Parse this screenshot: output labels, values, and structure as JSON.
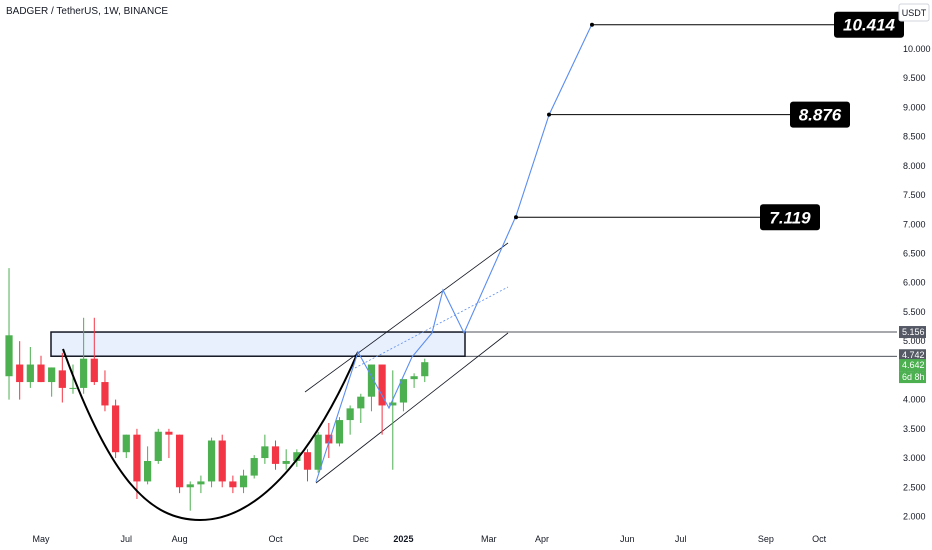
{
  "header": {
    "title": "BADGER / TetherUS, 1W, BINANCE",
    "currency": "USDT"
  },
  "chart_data": {
    "type": "candlestick",
    "y_axis": {
      "range": [
        1.9,
        10.6
      ],
      "ticks": [
        "2.000",
        "2.500",
        "3.000",
        "3.500",
        "4.000",
        "4.500",
        "5.000",
        "5.500",
        "6.000",
        "6.500",
        "7.000",
        "7.500",
        "8.000",
        "8.500",
        "9.000",
        "9.500",
        "10.000"
      ]
    },
    "x_axis": {
      "labels": [
        {
          "text": "May",
          "week": 0
        },
        {
          "text": "Jul",
          "week": 8
        },
        {
          "text": "Aug",
          "week": 13
        },
        {
          "text": "Oct",
          "week": 22
        },
        {
          "text": "Dec",
          "week": 30
        },
        {
          "text": "2025",
          "week": 34,
          "bold": true
        },
        {
          "text": "Mar",
          "week": 42
        },
        {
          "text": "Apr",
          "week": 47
        },
        {
          "text": "Jun",
          "week": 55
        },
        {
          "text": "Jul",
          "week": 60
        },
        {
          "text": "Sep",
          "week": 68
        },
        {
          "text": "Oct",
          "week": 73
        }
      ]
    },
    "candles": [
      {
        "week": -3,
        "o": 4.4,
        "h": 6.25,
        "l": 4.0,
        "c": 5.1
      },
      {
        "week": -2,
        "o": 4.6,
        "h": 5.0,
        "l": 4.0,
        "c": 4.3
      },
      {
        "week": -1,
        "o": 4.3,
        "h": 4.9,
        "l": 4.2,
        "c": 4.6
      },
      {
        "week": 0,
        "o": 4.6,
        "h": 4.75,
        "l": 4.3,
        "c": 4.3
      },
      {
        "week": 1,
        "o": 4.3,
        "h": 4.55,
        "l": 4.05,
        "c": 4.55
      },
      {
        "week": 2,
        "o": 4.5,
        "h": 4.8,
        "l": 3.95,
        "c": 4.2
      },
      {
        "week": 3,
        "o": 4.2,
        "h": 4.6,
        "l": 4.1,
        "c": 4.2
      },
      {
        "week": 4,
        "o": 4.2,
        "h": 5.4,
        "l": 4.1,
        "c": 4.7
      },
      {
        "week": 5,
        "o": 4.7,
        "h": 5.4,
        "l": 4.25,
        "c": 4.3
      },
      {
        "week": 6,
        "o": 4.3,
        "h": 4.5,
        "l": 3.8,
        "c": 3.9
      },
      {
        "week": 7,
        "o": 3.9,
        "h": 4.0,
        "l": 3.0,
        "c": 3.1
      },
      {
        "week": 8,
        "o": 3.1,
        "h": 3.4,
        "l": 3.0,
        "c": 3.4
      },
      {
        "week": 9,
        "o": 3.4,
        "h": 3.5,
        "l": 2.3,
        "c": 2.6
      },
      {
        "week": 10,
        "o": 2.6,
        "h": 3.2,
        "l": 2.55,
        "c": 2.95
      },
      {
        "week": 11,
        "o": 2.95,
        "h": 3.5,
        "l": 2.9,
        "c": 3.45
      },
      {
        "week": 12,
        "o": 3.45,
        "h": 3.5,
        "l": 3.0,
        "c": 3.4
      },
      {
        "week": 13,
        "o": 3.4,
        "h": 3.4,
        "l": 2.4,
        "c": 2.5
      },
      {
        "week": 14,
        "o": 2.5,
        "h": 2.6,
        "l": 2.1,
        "c": 2.55
      },
      {
        "week": 15,
        "o": 2.55,
        "h": 2.7,
        "l": 2.4,
        "c": 2.6
      },
      {
        "week": 16,
        "o": 2.6,
        "h": 3.35,
        "l": 2.5,
        "c": 3.3
      },
      {
        "week": 17,
        "o": 3.3,
        "h": 3.4,
        "l": 2.5,
        "c": 2.6
      },
      {
        "week": 18,
        "o": 2.6,
        "h": 2.7,
        "l": 2.4,
        "c": 2.5
      },
      {
        "week": 19,
        "o": 2.5,
        "h": 2.8,
        "l": 2.4,
        "c": 2.7
      },
      {
        "week": 20,
        "o": 2.7,
        "h": 3.05,
        "l": 2.65,
        "c": 3.0
      },
      {
        "week": 21,
        "o": 3.0,
        "h": 3.4,
        "l": 2.9,
        "c": 3.2
      },
      {
        "week": 22,
        "o": 3.2,
        "h": 3.3,
        "l": 2.8,
        "c": 2.9
      },
      {
        "week": 23,
        "o": 2.9,
        "h": 3.15,
        "l": 2.8,
        "c": 2.95
      },
      {
        "week": 24,
        "o": 2.95,
        "h": 3.15,
        "l": 2.85,
        "c": 3.1
      },
      {
        "week": 25,
        "o": 3.1,
        "h": 3.15,
        "l": 2.6,
        "c": 2.8
      },
      {
        "week": 26,
        "o": 2.8,
        "h": 3.45,
        "l": 2.75,
        "c": 3.4
      },
      {
        "week": 27,
        "o": 3.4,
        "h": 3.6,
        "l": 3.0,
        "c": 3.25
      },
      {
        "week": 28,
        "o": 3.25,
        "h": 3.7,
        "l": 3.2,
        "c": 3.65
      },
      {
        "week": 29,
        "o": 3.65,
        "h": 3.9,
        "l": 3.4,
        "c": 3.85
      },
      {
        "week": 30,
        "o": 3.85,
        "h": 4.1,
        "l": 3.6,
        "c": 4.05
      },
      {
        "week": 31,
        "o": 4.05,
        "h": 4.6,
        "l": 3.8,
        "c": 4.6
      },
      {
        "week": 32,
        "o": 4.6,
        "h": 4.6,
        "l": 3.4,
        "c": 3.9
      },
      {
        "week": 33,
        "o": 3.9,
        "h": 4.5,
        "l": 2.8,
        "c": 3.95
      },
      {
        "week": 34,
        "o": 3.95,
        "h": 4.3,
        "l": 3.8,
        "c": 4.35
      },
      {
        "week": 35,
        "o": 4.35,
        "h": 4.45,
        "l": 4.2,
        "c": 4.4
      },
      {
        "week": 36,
        "o": 4.4,
        "h": 4.7,
        "l": 4.3,
        "c": 4.64
      }
    ],
    "resistance_zone": {
      "top": 5.156,
      "bottom": 4.742
    },
    "targets": [
      "7.119",
      "8.876",
      "10.414"
    ],
    "target_levels": [
      7.119,
      8.876,
      10.414
    ],
    "price_tags": {
      "zone_top": "5.156",
      "zone_bottom": "4.742",
      "last_price": "4.642",
      "countdown": "6d 8h"
    },
    "colors": {
      "up": "#4caf50",
      "down": "#f23645",
      "projection": "#5b8def",
      "zone_fill": "#e8f0fe",
      "zone_border": "#131722",
      "channel": "#131722",
      "target_box": "#000000",
      "last_price_tag": "#4caf50",
      "zone_tag": "#545965"
    }
  }
}
